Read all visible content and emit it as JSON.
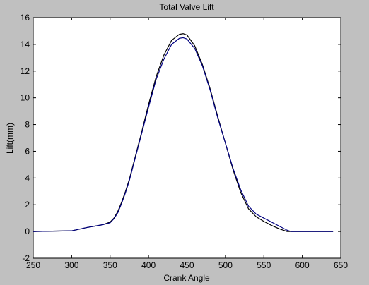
{
  "chart_data": {
    "type": "line",
    "title": "Total Valve Lift",
    "xlabel": "Crank Angle",
    "ylabel": "Lift(mm)",
    "xlim": [
      250,
      650
    ],
    "ylim": [
      -2,
      16
    ],
    "xticks": [
      250,
      300,
      350,
      400,
      450,
      500,
      550,
      600,
      650
    ],
    "yticks": [
      -2,
      0,
      2,
      4,
      6,
      8,
      10,
      12,
      14,
      16
    ],
    "grid": false,
    "legend": "none",
    "series": [
      {
        "color": "#000000",
        "x": [
          250,
          300,
          320,
          340,
          350,
          355,
          360,
          365,
          370,
          375,
          380,
          390,
          400,
          410,
          420,
          430,
          440,
          445,
          450,
          460,
          470,
          480,
          490,
          500,
          510,
          520,
          530,
          540,
          550,
          560,
          570,
          580,
          585,
          600,
          620,
          640
        ],
        "y": [
          0,
          0.05,
          0.3,
          0.5,
          0.7,
          1.0,
          1.5,
          2.2,
          3.0,
          3.9,
          5.0,
          7.2,
          9.5,
          11.6,
          13.2,
          14.3,
          14.75,
          14.8,
          14.7,
          13.9,
          12.5,
          10.7,
          8.6,
          6.6,
          4.6,
          2.9,
          1.7,
          1.1,
          0.75,
          0.45,
          0.2,
          0,
          0,
          0,
          0,
          0
        ]
      },
      {
        "color": "#000080",
        "x": [
          250,
          300,
          320,
          340,
          350,
          355,
          360,
          365,
          370,
          375,
          380,
          390,
          400,
          410,
          420,
          430,
          440,
          445,
          450,
          460,
          470,
          480,
          490,
          500,
          510,
          520,
          530,
          540,
          550,
          560,
          570,
          580,
          585,
          600,
          620,
          640
        ],
        "y": [
          0,
          0.05,
          0.3,
          0.5,
          0.65,
          0.95,
          1.4,
          2.1,
          2.9,
          3.8,
          4.9,
          7.1,
          9.3,
          11.4,
          12.9,
          14.0,
          14.45,
          14.5,
          14.4,
          13.7,
          12.4,
          10.6,
          8.5,
          6.6,
          4.7,
          3.1,
          1.9,
          1.3,
          1.0,
          0.7,
          0.4,
          0.1,
          0,
          0,
          0,
          0
        ]
      }
    ]
  }
}
